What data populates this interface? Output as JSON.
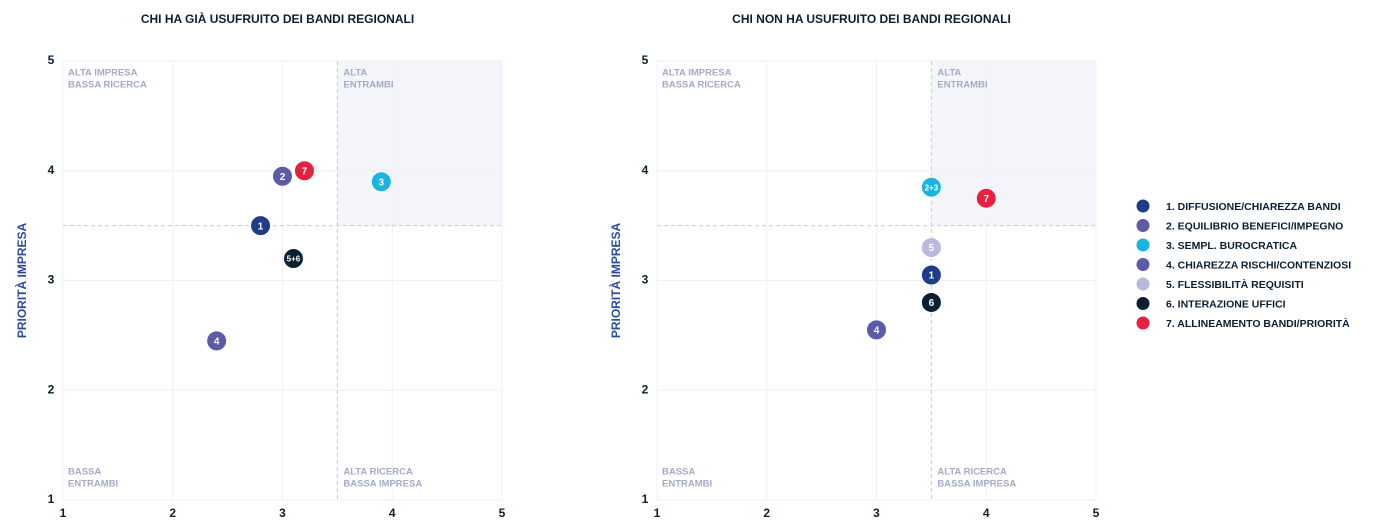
{
  "chart_data": [
    {
      "type": "scatter",
      "title": "CHI HA GIÀ USUFRUITO DEI BANDI REGIONALI",
      "y_label": "PRIORITÀ IMPRESA",
      "xlim": [
        1,
        5
      ],
      "ylim": [
        1,
        5
      ],
      "xticks": [
        1,
        2,
        3,
        4,
        5
      ],
      "yticks": [
        1,
        2,
        3,
        4,
        5
      ],
      "grid": true,
      "quadrant_lines": {
        "x": 3.5,
        "y": 3.5
      },
      "quadrant_labels": [
        [
          "ALTA IMPRESA",
          "BASSA RICERCA"
        ],
        [
          "ALTA",
          "ENTRAMBI"
        ],
        [
          "BASSA",
          "ENTRAMBI"
        ],
        [
          "ALTA RICERCA",
          "BASSA IMPRESA"
        ]
      ],
      "x": [
        2.8,
        3.0,
        3.9,
        2.4,
        3.1,
        3.2
      ],
      "values": [
        3.5,
        3.95,
        3.9,
        2.45,
        3.2,
        4.0
      ],
      "point_labels": [
        "1",
        "2",
        "3",
        "4",
        "5+6",
        "7"
      ],
      "colors": [
        "#1f3c88",
        "#5b5ba8",
        "#1ab4e3",
        "#5b5ba8",
        "#0b1f33",
        "#e6203f"
      ]
    },
    {
      "type": "scatter",
      "title": "CHI NON HA USUFRUITO DEI BANDI REGIONALI",
      "y_label": "PRIORITÀ IMPRESA",
      "xlim": [
        1,
        5
      ],
      "ylim": [
        1,
        5
      ],
      "xticks": [
        1,
        2,
        3,
        4,
        5
      ],
      "yticks": [
        1,
        2,
        3,
        4,
        5
      ],
      "grid": true,
      "quadrant_lines": {
        "x": 3.5,
        "y": 3.5
      },
      "quadrant_labels": [
        [
          "ALTA IMPRESA",
          "BASSA RICERCA"
        ],
        [
          "ALTA",
          "ENTRAMBI"
        ],
        [
          "BASSA",
          "ENTRAMBI"
        ],
        [
          "ALTA RICERCA",
          "BASSA IMPRESA"
        ]
      ],
      "x": [
        3.5,
        3.5,
        3.0,
        3.5,
        3.5,
        4.0
      ],
      "values": [
        3.05,
        3.85,
        2.55,
        3.3,
        2.8,
        3.75
      ],
      "point_labels": [
        "1",
        "2+3",
        "4",
        "5",
        "6",
        "7"
      ],
      "colors": [
        "#1f3c88",
        "#1ab4e3",
        "#5b5ba8",
        "#b9b9dd",
        "#0b1f33",
        "#e6203f"
      ]
    }
  ],
  "legend": {
    "items": [
      "1. DIFFUSIONE/CHIAREZZA BANDI",
      "2. EQUILIBRIO BENEFICI/IMPEGNO",
      "3. SEMPL. BUROCRATICA",
      "4. CHIAREZZA RISCHI/CONTENZIOSI",
      "5. FLESSIBILITÀ REQUISITI",
      "6. INTERAZIONE UFFICI",
      "7. ALLINEAMENTO BANDI/PRIORITÀ"
    ],
    "colors": [
      "#1f3c88",
      "#5b5ba8",
      "#1ab4e3",
      "#5b5ba8",
      "#b9b9dd",
      "#0b1f33",
      "#e6203f"
    ]
  }
}
